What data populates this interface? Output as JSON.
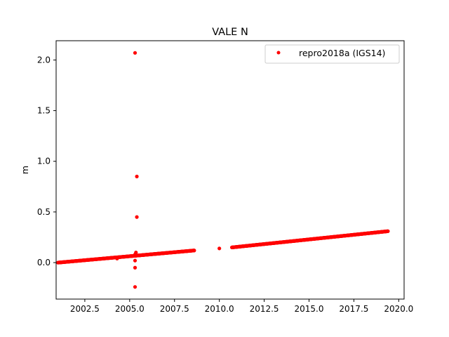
{
  "chart_data": {
    "type": "scatter",
    "title": "VALE N",
    "xlabel": "",
    "ylabel": "m",
    "xlim": [
      2000.9,
      2020.3
    ],
    "ylim": [
      -0.36,
      2.19
    ],
    "x_ticks": [
      "2002.5",
      "2005.0",
      "2007.5",
      "2010.0",
      "2012.5",
      "2015.0",
      "2017.5",
      "2020.0"
    ],
    "y_ticks": [
      "0.0",
      "0.5",
      "1.0",
      "1.5",
      "2.0"
    ],
    "legend_position": "top-right",
    "grid": false,
    "series": [
      {
        "name": "repro2018a (IGS14)",
        "color": "#ff0000",
        "marker": "dot",
        "segments": [
          {
            "x_start": 2001.0,
            "y_start": 0.0,
            "x_end": 2008.6,
            "y_end": 0.12
          },
          {
            "x_start": 2010.7,
            "y_start": 0.15,
            "x_end": 2019.4,
            "y_end": 0.31
          }
        ],
        "points": [
          {
            "x": 2010.0,
            "y": 0.14
          },
          {
            "x": 2005.3,
            "y": 2.07
          },
          {
            "x": 2005.4,
            "y": 0.85
          },
          {
            "x": 2005.4,
            "y": 0.45
          },
          {
            "x": 2005.35,
            "y": 0.1
          },
          {
            "x": 2005.3,
            "y": 0.08
          },
          {
            "x": 2005.3,
            "y": 0.02
          },
          {
            "x": 2005.3,
            "y": -0.05
          },
          {
            "x": 2005.3,
            "y": -0.24
          },
          {
            "x": 2004.3,
            "y": 0.04
          }
        ]
      }
    ]
  }
}
